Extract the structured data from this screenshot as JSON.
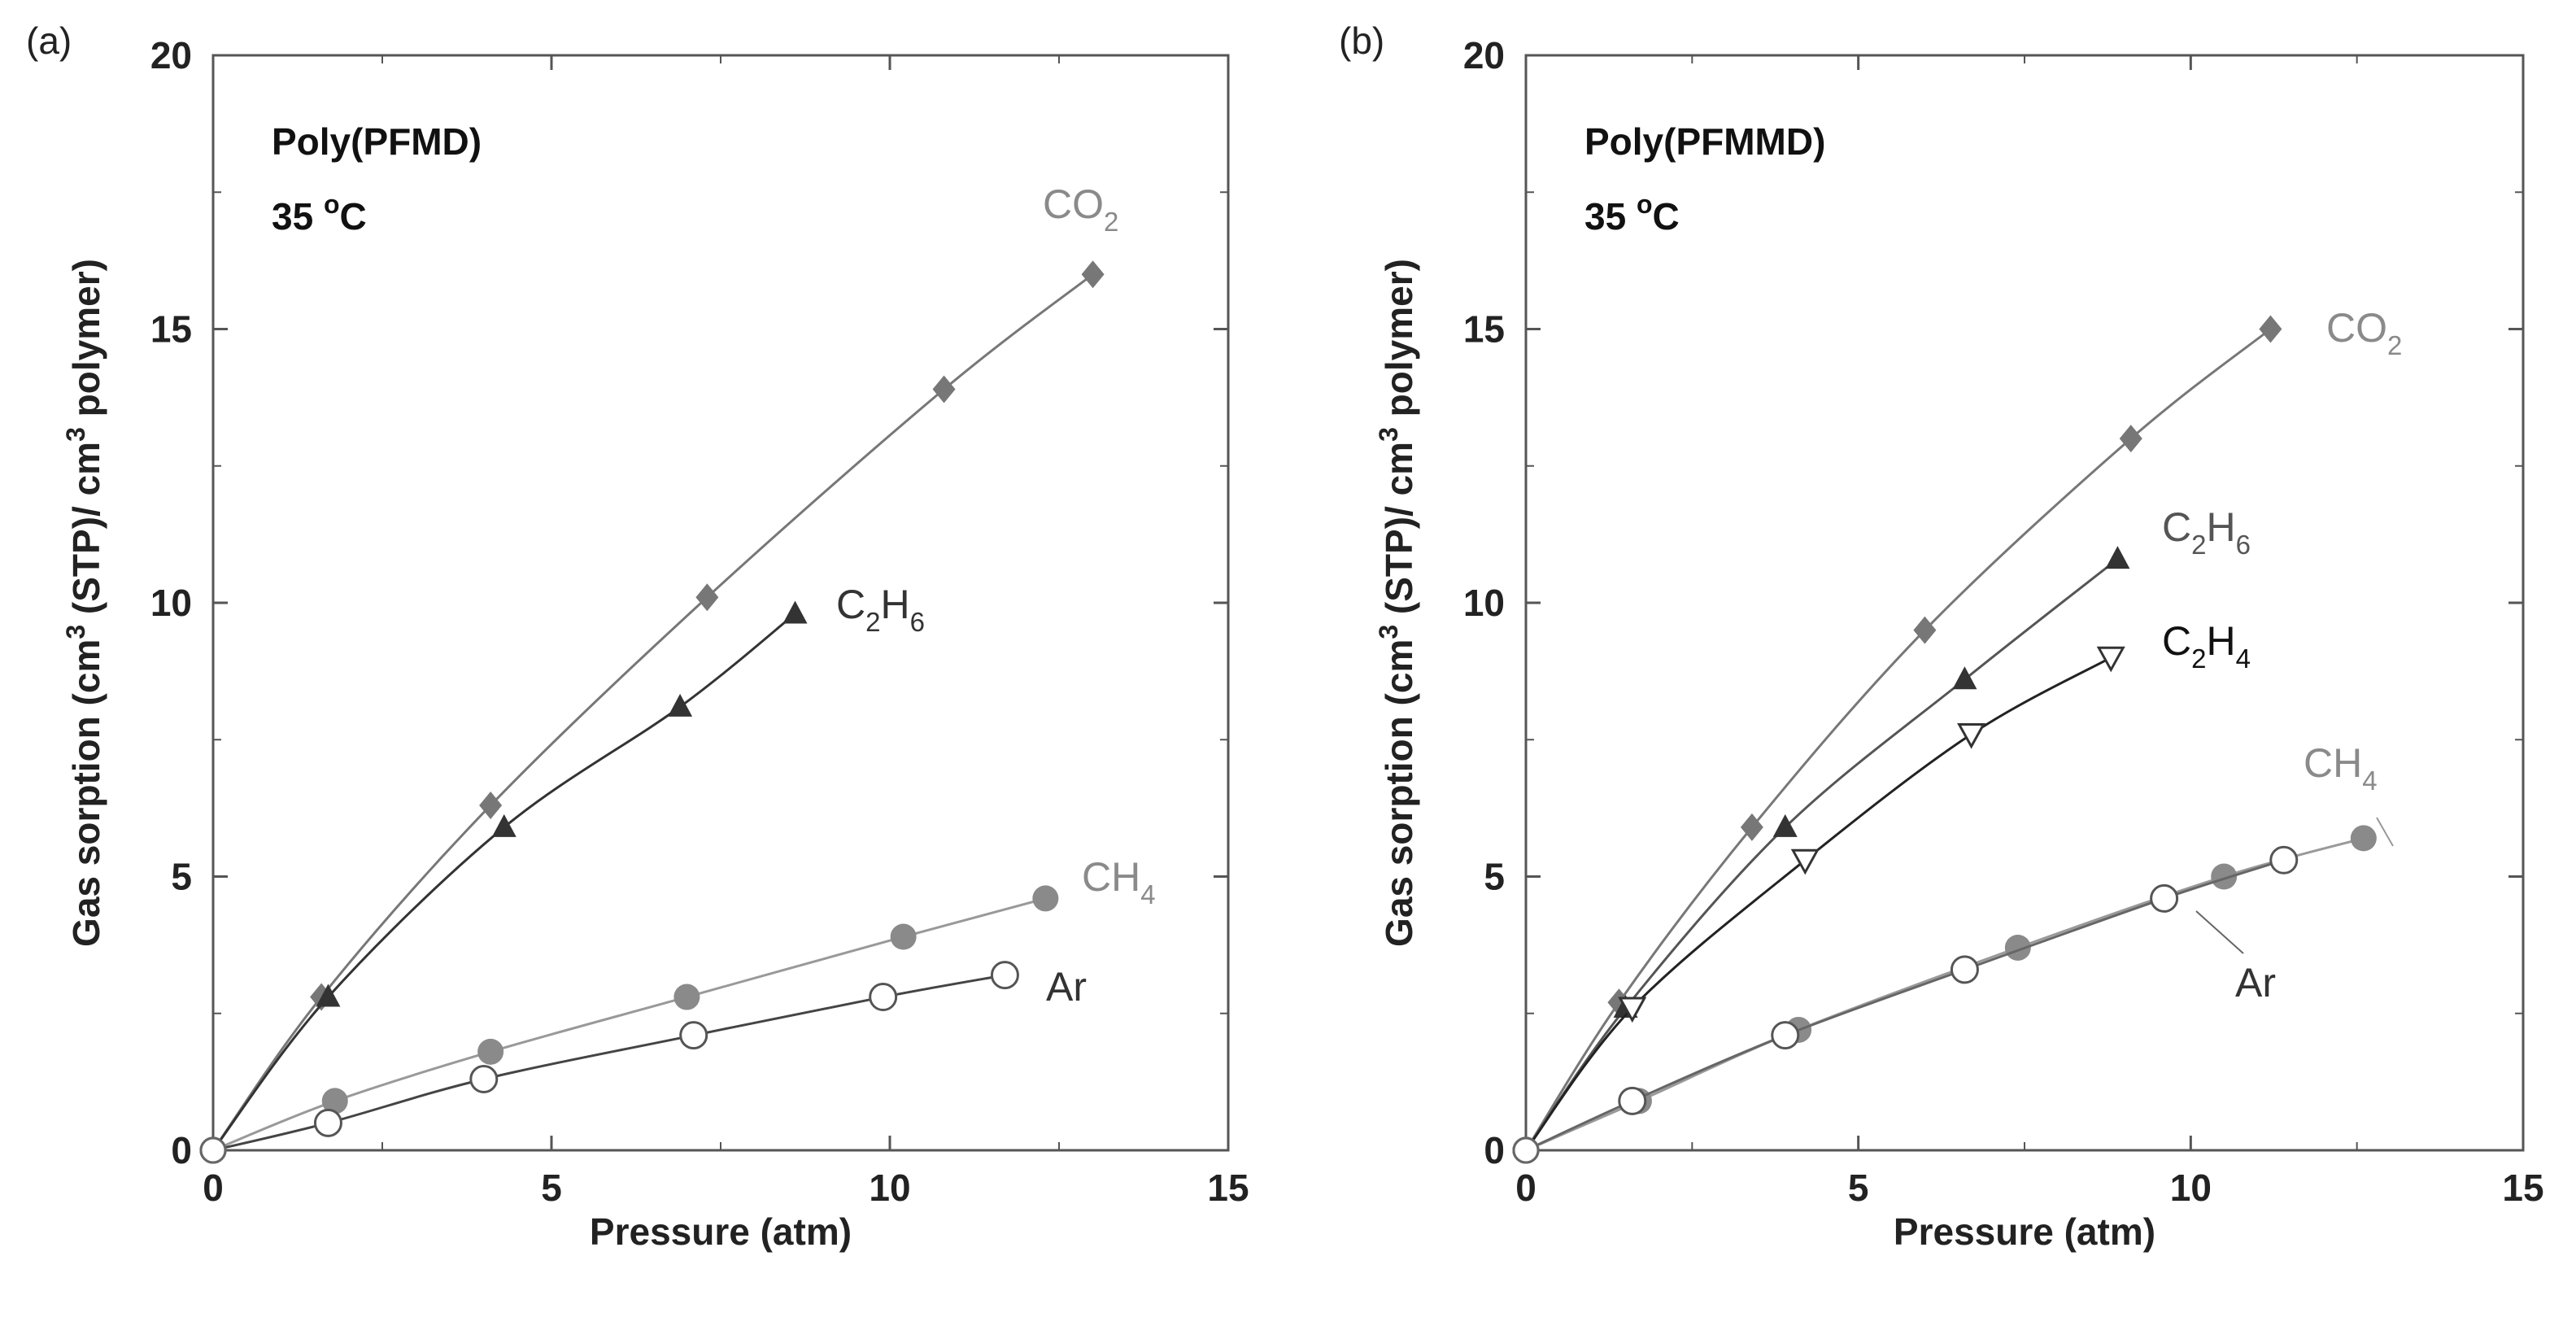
{
  "chart_data": [
    {
      "type": "scatter",
      "panel_label": "(a)",
      "title": "Poly(PFMD)",
      "temperature": {
        "value": "35",
        "unit_sup": "o",
        "unit": "C"
      },
      "xlabel": "Pressure (atm)",
      "ylabel": {
        "parts": [
          "Gas sorption (cm",
          "3",
          " (STP)/ cm",
          "3",
          " polymer)"
        ]
      },
      "xlim": [
        0,
        15
      ],
      "ylim": [
        0,
        20
      ],
      "xticks": [
        "0",
        "5",
        "10",
        "15"
      ],
      "yticks": [
        "0",
        "5",
        "10",
        "15",
        "20"
      ],
      "series": [
        {
          "name": "CO2",
          "label_main": "CO",
          "label_sub": "2",
          "label_color": "#8a8a8a",
          "marker": "diamond",
          "marker_color": "#777777",
          "line_color": "#777777",
          "x": [
            0,
            1.6,
            4.1,
            7.3,
            10.8,
            13.0
          ],
          "y": [
            0,
            2.8,
            6.3,
            10.1,
            13.9,
            16.0
          ]
        },
        {
          "name": "C2H6",
          "label_main": "C",
          "label_sub": "2",
          "label_main2": "H",
          "label_sub2": "6",
          "label_color": "#333333",
          "marker": "triangle",
          "marker_color": "#333333",
          "line_color": "#333333",
          "x": [
            0,
            1.7,
            4.3,
            6.9,
            8.6
          ],
          "y": [
            0,
            2.8,
            5.9,
            8.1,
            9.8
          ]
        },
        {
          "name": "CH4",
          "label_main": "CH",
          "label_sub": "4",
          "label_color": "#8a8a8a",
          "marker": "circle-filled",
          "marker_color": "#8a8a8a",
          "line_color": "#999999",
          "x": [
            0,
            1.8,
            4.1,
            7.0,
            10.2,
            12.3
          ],
          "y": [
            0,
            0.9,
            1.8,
            2.8,
            3.9,
            4.6
          ]
        },
        {
          "name": "Ar",
          "label_main": "Ar",
          "label_color": "#333333",
          "marker": "circle-open",
          "marker_color": "#555555",
          "line_color": "#444444",
          "x": [
            0,
            1.7,
            4.0,
            7.1,
            9.9,
            11.7
          ],
          "y": [
            0,
            0.5,
            1.3,
            2.1,
            2.8,
            3.2
          ]
        }
      ]
    },
    {
      "type": "scatter",
      "panel_label": "(b)",
      "title": "Poly(PFMMD)",
      "temperature": {
        "value": "35",
        "unit_sup": "o",
        "unit": "C"
      },
      "xlabel": "Pressure (atm)",
      "ylabel": {
        "parts": [
          "Gas sorption (cm",
          "3",
          " (STP)/ cm",
          "3",
          " polymer)"
        ]
      },
      "xlim": [
        0,
        15
      ],
      "ylim": [
        0,
        20
      ],
      "xticks": [
        "0",
        "5",
        "10",
        "15"
      ],
      "yticks": [
        "0",
        "5",
        "10",
        "15",
        "20"
      ],
      "series": [
        {
          "name": "CO2",
          "label_main": "CO",
          "label_sub": "2",
          "label_color": "#8a8a8a",
          "marker": "diamond",
          "marker_color": "#777777",
          "line_color": "#777777",
          "x": [
            0,
            1.4,
            3.4,
            6.0,
            9.1,
            11.2
          ],
          "y": [
            0,
            2.7,
            5.9,
            9.5,
            13.0,
            15.0
          ]
        },
        {
          "name": "C2H6",
          "label_main": "C",
          "label_sub": "2",
          "label_main2": "H",
          "label_sub2": "6",
          "label_color": "#555555",
          "marker": "triangle",
          "marker_color": "#333333",
          "line_color": "#555555",
          "x": [
            0,
            1.5,
            3.9,
            6.6,
            8.9
          ],
          "y": [
            0,
            2.6,
            5.9,
            8.6,
            10.8
          ]
        },
        {
          "name": "C2H4",
          "label_main": "C",
          "label_sub": "2",
          "label_main2": "H",
          "label_sub2": "4",
          "label_color": "#111111",
          "marker": "triangle-down-open",
          "marker_color": "#333333",
          "line_color": "#222222",
          "x": [
            0,
            1.6,
            4.2,
            6.7,
            8.8
          ],
          "y": [
            0,
            2.6,
            5.3,
            7.6,
            9.0
          ]
        },
        {
          "name": "CH4",
          "label_main": "CH",
          "label_sub": "4",
          "label_color": "#8a8a8a",
          "marker": "circle-filled",
          "marker_color": "#8a8a8a",
          "line_color": "#999999",
          "x": [
            0,
            1.7,
            4.1,
            7.4,
            10.5,
            12.6
          ],
          "y": [
            0,
            0.9,
            2.2,
            3.7,
            5.0,
            5.7
          ]
        },
        {
          "name": "Ar",
          "label_main": "Ar",
          "label_color": "#333333",
          "marker": "circle-open",
          "marker_color": "#555555",
          "line_color": "#666666",
          "x": [
            0,
            1.6,
            3.9,
            6.6,
            9.6,
            11.4
          ],
          "y": [
            0,
            0.9,
            2.1,
            3.3,
            4.6,
            5.3
          ]
        }
      ]
    }
  ]
}
